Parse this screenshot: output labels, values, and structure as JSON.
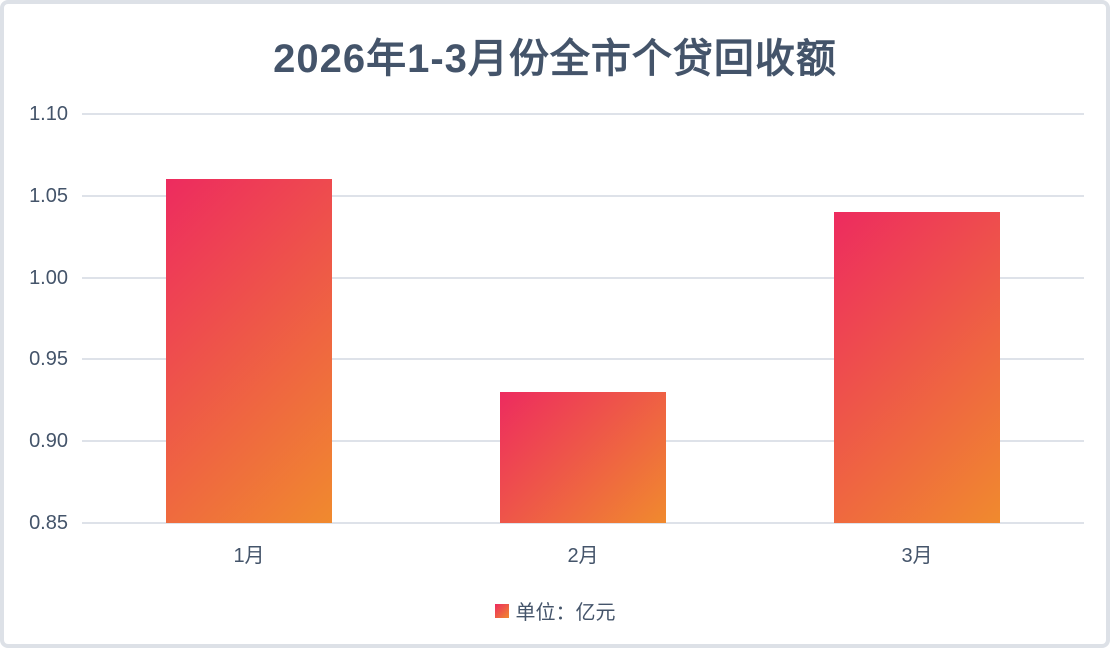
{
  "title": "2026年1-3月份全市个贷回收额",
  "legend": {
    "label": "单位：亿元"
  },
  "colors": {
    "text": "#44546A",
    "gridline": "#DEE2E9",
    "frame_border": "#DDE1E7",
    "bar_gradient_start": "#ED2B5F",
    "bar_gradient_end": "#F08A2E"
  },
  "chart_data": {
    "type": "bar",
    "title": "2026年1-3月份全市个贷回收额",
    "categories": [
      "1月",
      "2月",
      "3月"
    ],
    "values": [
      1.06,
      0.93,
      1.04
    ],
    "ylabel": "",
    "xlabel": "",
    "ylim": [
      0.85,
      1.1
    ],
    "ytick_step": 0.05,
    "ytick_labels": [
      "1.10",
      "1.05",
      "1.00",
      "0.95",
      "0.90",
      "0.85"
    ],
    "grid": true,
    "legend_entries": [
      "单位：亿元"
    ],
    "legend_position": "bottom"
  }
}
